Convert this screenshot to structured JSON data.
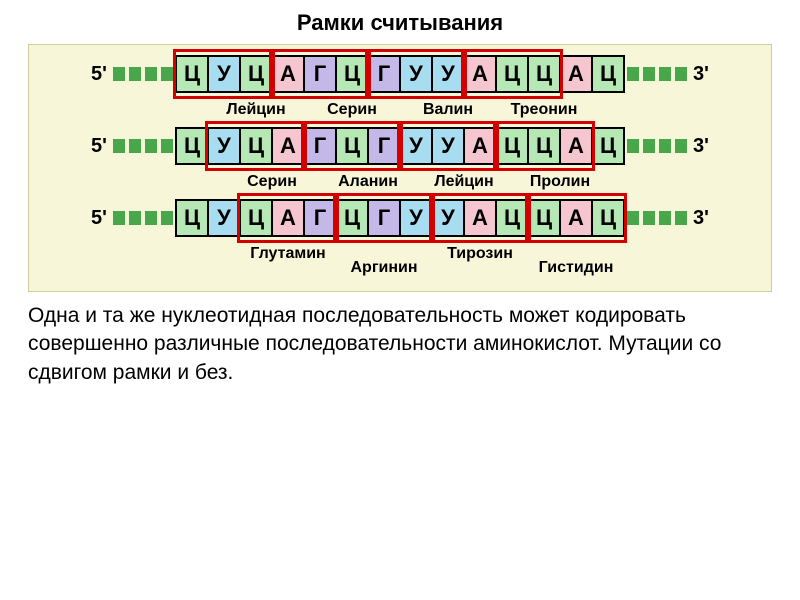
{
  "title": "Рамки считывания",
  "caption": "Одна и та же нуклеотидная последовательность может кодировать совершенно различные последовательности аминокислот. Мутации со сдвигом рамки и без.",
  "colors": {
    "Ц": "#b6e8b6",
    "У": "#a8dcf0",
    "А": "#f6c6d0",
    "Г": "#c4b8e8",
    "dash": "#4aa64a",
    "frame": "#d40000",
    "bg": "#f8f6d8",
    "border": "#000000"
  },
  "sequence": [
    "Ц",
    "У",
    "Ц",
    "А",
    "Г",
    "Ц",
    "Г",
    "У",
    "У",
    "А",
    "Ц",
    "Ц",
    "А",
    "Ц"
  ],
  "nuc_width": 34,
  "nuc_overlap": 2,
  "end5": "5'",
  "end3": "3'",
  "dash_count": 4,
  "rows": [
    {
      "frame_start": 0,
      "amino": [
        "Лейцин",
        "Серин",
        "Валин",
        "Треонин"
      ],
      "stagger": false,
      "label_offset": 0,
      "label_width": 96
    },
    {
      "frame_start": 1,
      "amino": [
        "Серин",
        "Аланин",
        "Лейцин",
        "Пролин"
      ],
      "stagger": false,
      "label_offset": 32,
      "label_width": 96
    },
    {
      "frame_start": 2,
      "amino": [
        "Глутамин",
        "Аргинин",
        "Тирозин",
        "Гистидин"
      ],
      "stagger": true,
      "label_offset": 64,
      "label_width": 96
    }
  ]
}
